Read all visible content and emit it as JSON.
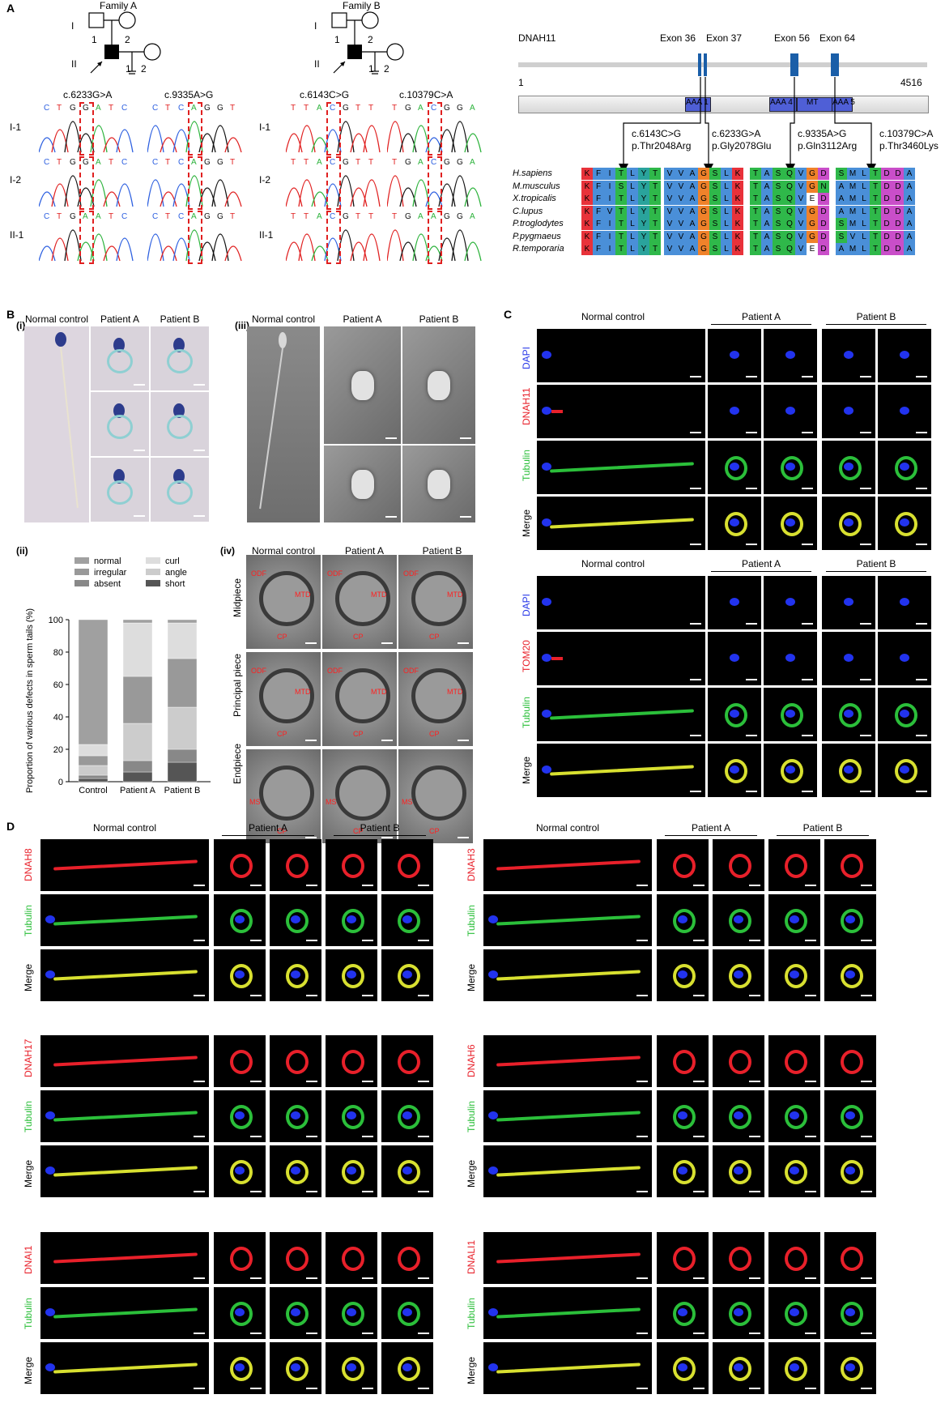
{
  "panel_labels": {
    "A": "A",
    "B": "B",
    "C": "C",
    "D": "D"
  },
  "pedigree": {
    "family_a": "Family A",
    "family_b": "Family B",
    "gen_i": "I",
    "gen_ii": "II",
    "n1": "1",
    "n2": "2"
  },
  "mutations": {
    "a1": "c.6233G>A",
    "a2": "c.9335A>G",
    "b1": "c.6143C>G",
    "b2": "c.10379C>A"
  },
  "seq_rows": {
    "r1": "I-1",
    "r2": "I-2",
    "r3": "II-1"
  },
  "seq_letters": {
    "a1_r1": [
      "C",
      "T",
      "G",
      "G",
      "A",
      "T",
      "C"
    ],
    "a1_r2": [
      "C",
      "T",
      "G",
      "G",
      "A",
      "T",
      "C"
    ],
    "a1_r3": [
      "C",
      "T",
      "G",
      "A",
      "A",
      "T",
      "C"
    ],
    "a2_r1": [
      "C",
      "T",
      "C",
      "A",
      "G",
      "G",
      "T"
    ],
    "a2_r2": [
      "C",
      "T",
      "C",
      "A",
      "G",
      "G",
      "T"
    ],
    "a2_r3": [
      "C",
      "T",
      "C",
      "A",
      "G",
      "G",
      "T"
    ],
    "b1_r1": [
      "T",
      "T",
      "A",
      "C",
      "G",
      "T",
      "T"
    ],
    "b1_r2": [
      "T",
      "T",
      "A",
      "C",
      "G",
      "T",
      "T"
    ],
    "b1_r3": [
      "T",
      "T",
      "A",
      "C",
      "G",
      "T",
      "T"
    ],
    "b2_r1": [
      "T",
      "G",
      "A",
      "C",
      "G",
      "G",
      "A"
    ],
    "b2_r2": [
      "T",
      "G",
      "A",
      "C",
      "G",
      "G",
      "A"
    ],
    "b2_r3": [
      "T",
      "G",
      "A",
      "A",
      "G",
      "G",
      "A"
    ]
  },
  "gene": {
    "name": "DNAH11",
    "start": "1",
    "end": "4516",
    "exons": [
      "Exon 36",
      "Exon 37",
      "Exon 56",
      "Exon 64"
    ],
    "domains": [
      "AAA 1",
      "AAA 4",
      "MT",
      "AAA 5"
    ],
    "variants": [
      {
        "c": "c.6143C>G",
        "p": "p.Thr2048Arg"
      },
      {
        "c": "c.6233G>A",
        "p": "p.Gly2078Glu"
      },
      {
        "c": "c.9335A>G",
        "p": "p.Gln3112Arg"
      },
      {
        "c": "c.10379C>A",
        "p": "p.Thr3460Lys"
      }
    ]
  },
  "alignment": {
    "species": [
      "H.sapiens",
      "M.musculus",
      "X.tropicalis",
      "C.lupus",
      "P.troglodytes",
      "P.pygmaeus",
      "R.temporaria"
    ],
    "blocks": [
      [
        "KFITLYT",
        "KFISLYT",
        "KFITLYT",
        "KFVTLYT",
        "KFITLYT",
        "KFITLYT",
        "KFITLYT"
      ],
      [
        "VVAGSLK",
        "VVAGSLK",
        "VVAGSLK",
        "VVAGSLK",
        "VVAGSLK",
        "VVAGSLK",
        "VVAGSLK"
      ],
      [
        "TASQVGD",
        "TASQVGN",
        "TASQVED",
        "TASQVGD",
        "TASQVGD",
        "TASQVGD",
        "TASQVED"
      ],
      [
        "SMLTDDA",
        "AMLTDDA",
        "AMLTDDA",
        "AMLTDDA",
        "SMLTDDA",
        "SVLTDDA",
        "AMLTDDA"
      ]
    ],
    "colors": {
      "K": "#e8323a",
      "F": "#4a8fd8",
      "I": "#4a8fd8",
      "T": "#2fb84a",
      "L": "#4a8fd8",
      "Y": "#2aa39c",
      "V": "#4a8fd8",
      "A": "#4a8fd8",
      "G": "#f0822a",
      "S": "#2fb84a",
      "Q": "#2fb84a",
      "D": "#c94ec9",
      "N": "#2fb84a",
      "E": "#ffffff",
      "M": "#4a8fd8"
    }
  },
  "panel_b": {
    "sub_i": "(i)",
    "sub_ii": "(ii)",
    "sub_iii": "(iii)",
    "sub_iv": "(iv)",
    "cols": [
      "Normal control",
      "Patient A",
      "Patient B"
    ],
    "tem_rows": [
      "Midpiece",
      "Principal piece",
      "Endpiece"
    ],
    "tem_labels": [
      "ODF",
      "MS",
      "MTD",
      "CP"
    ]
  },
  "chart_data": {
    "type": "bar",
    "stacked": true,
    "categories": [
      "Control",
      "Patient A",
      "Patient B"
    ],
    "ylabel": "Proportion of various defects in sperm tails (%)",
    "ylim": [
      0,
      100
    ],
    "yticks": [
      "0",
      "20",
      "40",
      "60",
      "80",
      "100"
    ],
    "legend_position": "top",
    "series": [
      {
        "name": "short",
        "values": [
          2,
          6,
          12
        ],
        "color": "#555555"
      },
      {
        "name": "absent",
        "values": [
          2,
          7,
          8
        ],
        "color": "#888888"
      },
      {
        "name": "angle",
        "values": [
          6,
          23,
          26
        ],
        "color": "#cccccc"
      },
      {
        "name": "irregular",
        "values": [
          6,
          29,
          30
        ],
        "color": "#999999"
      },
      {
        "name": "curl",
        "values": [
          7,
          33,
          22
        ],
        "color": "#dddddd"
      },
      {
        "name": "normal",
        "values": [
          77,
          2,
          2
        ],
        "color": "#a0a0a0"
      }
    ]
  },
  "panel_c": {
    "cols": [
      "Normal control",
      "Patient A",
      "Patient B"
    ],
    "rows1": [
      "DAPI",
      "DNAH11",
      "Tubulin",
      "Merge"
    ],
    "rows2": [
      "DAPI",
      "TOM20",
      "Tubulin",
      "Merge"
    ]
  },
  "panel_d": {
    "cols": [
      "Normal control",
      "Patient A",
      "Patient B"
    ],
    "left_markers": [
      "DNAH8",
      "DNAH17",
      "DNAI1"
    ],
    "right_markers": [
      "DNAH3",
      "DNAH6",
      "DNALI1"
    ],
    "tubulin": "Tubulin",
    "merge": "Merge"
  },
  "colors": {
    "red": "#e8202a",
    "green": "#2bbf3a",
    "blue": "#2233ee",
    "dna": "#3057d8",
    "dark": "#000000"
  }
}
